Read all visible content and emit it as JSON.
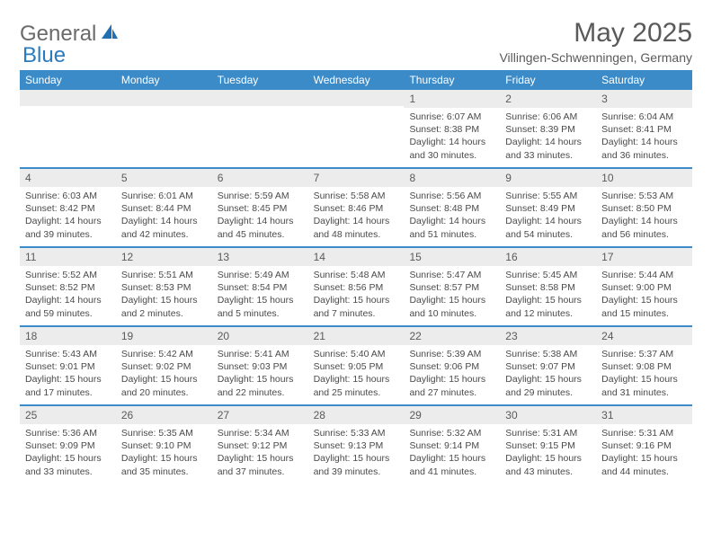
{
  "logo": {
    "text1": "General",
    "text2": "Blue"
  },
  "title": "May 2025",
  "location": "Villingen-Schwenningen, Germany",
  "colors": {
    "header_bg": "#3b8bc9",
    "daynum_bg": "#ececec",
    "text": "#5a5a5a",
    "body_text": "#4a4a4a"
  },
  "dow": [
    "Sunday",
    "Monday",
    "Tuesday",
    "Wednesday",
    "Thursday",
    "Friday",
    "Saturday"
  ],
  "weeks": [
    [
      {
        "n": "",
        "sr": "",
        "ss": "",
        "dl": ""
      },
      {
        "n": "",
        "sr": "",
        "ss": "",
        "dl": ""
      },
      {
        "n": "",
        "sr": "",
        "ss": "",
        "dl": ""
      },
      {
        "n": "",
        "sr": "",
        "ss": "",
        "dl": ""
      },
      {
        "n": "1",
        "sr": "Sunrise: 6:07 AM",
        "ss": "Sunset: 8:38 PM",
        "dl": "Daylight: 14 hours and 30 minutes."
      },
      {
        "n": "2",
        "sr": "Sunrise: 6:06 AM",
        "ss": "Sunset: 8:39 PM",
        "dl": "Daylight: 14 hours and 33 minutes."
      },
      {
        "n": "3",
        "sr": "Sunrise: 6:04 AM",
        "ss": "Sunset: 8:41 PM",
        "dl": "Daylight: 14 hours and 36 minutes."
      }
    ],
    [
      {
        "n": "4",
        "sr": "Sunrise: 6:03 AM",
        "ss": "Sunset: 8:42 PM",
        "dl": "Daylight: 14 hours and 39 minutes."
      },
      {
        "n": "5",
        "sr": "Sunrise: 6:01 AM",
        "ss": "Sunset: 8:44 PM",
        "dl": "Daylight: 14 hours and 42 minutes."
      },
      {
        "n": "6",
        "sr": "Sunrise: 5:59 AM",
        "ss": "Sunset: 8:45 PM",
        "dl": "Daylight: 14 hours and 45 minutes."
      },
      {
        "n": "7",
        "sr": "Sunrise: 5:58 AM",
        "ss": "Sunset: 8:46 PM",
        "dl": "Daylight: 14 hours and 48 minutes."
      },
      {
        "n": "8",
        "sr": "Sunrise: 5:56 AM",
        "ss": "Sunset: 8:48 PM",
        "dl": "Daylight: 14 hours and 51 minutes."
      },
      {
        "n": "9",
        "sr": "Sunrise: 5:55 AM",
        "ss": "Sunset: 8:49 PM",
        "dl": "Daylight: 14 hours and 54 minutes."
      },
      {
        "n": "10",
        "sr": "Sunrise: 5:53 AM",
        "ss": "Sunset: 8:50 PM",
        "dl": "Daylight: 14 hours and 56 minutes."
      }
    ],
    [
      {
        "n": "11",
        "sr": "Sunrise: 5:52 AM",
        "ss": "Sunset: 8:52 PM",
        "dl": "Daylight: 14 hours and 59 minutes."
      },
      {
        "n": "12",
        "sr": "Sunrise: 5:51 AM",
        "ss": "Sunset: 8:53 PM",
        "dl": "Daylight: 15 hours and 2 minutes."
      },
      {
        "n": "13",
        "sr": "Sunrise: 5:49 AM",
        "ss": "Sunset: 8:54 PM",
        "dl": "Daylight: 15 hours and 5 minutes."
      },
      {
        "n": "14",
        "sr": "Sunrise: 5:48 AM",
        "ss": "Sunset: 8:56 PM",
        "dl": "Daylight: 15 hours and 7 minutes."
      },
      {
        "n": "15",
        "sr": "Sunrise: 5:47 AM",
        "ss": "Sunset: 8:57 PM",
        "dl": "Daylight: 15 hours and 10 minutes."
      },
      {
        "n": "16",
        "sr": "Sunrise: 5:45 AM",
        "ss": "Sunset: 8:58 PM",
        "dl": "Daylight: 15 hours and 12 minutes."
      },
      {
        "n": "17",
        "sr": "Sunrise: 5:44 AM",
        "ss": "Sunset: 9:00 PM",
        "dl": "Daylight: 15 hours and 15 minutes."
      }
    ],
    [
      {
        "n": "18",
        "sr": "Sunrise: 5:43 AM",
        "ss": "Sunset: 9:01 PM",
        "dl": "Daylight: 15 hours and 17 minutes."
      },
      {
        "n": "19",
        "sr": "Sunrise: 5:42 AM",
        "ss": "Sunset: 9:02 PM",
        "dl": "Daylight: 15 hours and 20 minutes."
      },
      {
        "n": "20",
        "sr": "Sunrise: 5:41 AM",
        "ss": "Sunset: 9:03 PM",
        "dl": "Daylight: 15 hours and 22 minutes."
      },
      {
        "n": "21",
        "sr": "Sunrise: 5:40 AM",
        "ss": "Sunset: 9:05 PM",
        "dl": "Daylight: 15 hours and 25 minutes."
      },
      {
        "n": "22",
        "sr": "Sunrise: 5:39 AM",
        "ss": "Sunset: 9:06 PM",
        "dl": "Daylight: 15 hours and 27 minutes."
      },
      {
        "n": "23",
        "sr": "Sunrise: 5:38 AM",
        "ss": "Sunset: 9:07 PM",
        "dl": "Daylight: 15 hours and 29 minutes."
      },
      {
        "n": "24",
        "sr": "Sunrise: 5:37 AM",
        "ss": "Sunset: 9:08 PM",
        "dl": "Daylight: 15 hours and 31 minutes."
      }
    ],
    [
      {
        "n": "25",
        "sr": "Sunrise: 5:36 AM",
        "ss": "Sunset: 9:09 PM",
        "dl": "Daylight: 15 hours and 33 minutes."
      },
      {
        "n": "26",
        "sr": "Sunrise: 5:35 AM",
        "ss": "Sunset: 9:10 PM",
        "dl": "Daylight: 15 hours and 35 minutes."
      },
      {
        "n": "27",
        "sr": "Sunrise: 5:34 AM",
        "ss": "Sunset: 9:12 PM",
        "dl": "Daylight: 15 hours and 37 minutes."
      },
      {
        "n": "28",
        "sr": "Sunrise: 5:33 AM",
        "ss": "Sunset: 9:13 PM",
        "dl": "Daylight: 15 hours and 39 minutes."
      },
      {
        "n": "29",
        "sr": "Sunrise: 5:32 AM",
        "ss": "Sunset: 9:14 PM",
        "dl": "Daylight: 15 hours and 41 minutes."
      },
      {
        "n": "30",
        "sr": "Sunrise: 5:31 AM",
        "ss": "Sunset: 9:15 PM",
        "dl": "Daylight: 15 hours and 43 minutes."
      },
      {
        "n": "31",
        "sr": "Sunrise: 5:31 AM",
        "ss": "Sunset: 9:16 PM",
        "dl": "Daylight: 15 hours and 44 minutes."
      }
    ]
  ]
}
